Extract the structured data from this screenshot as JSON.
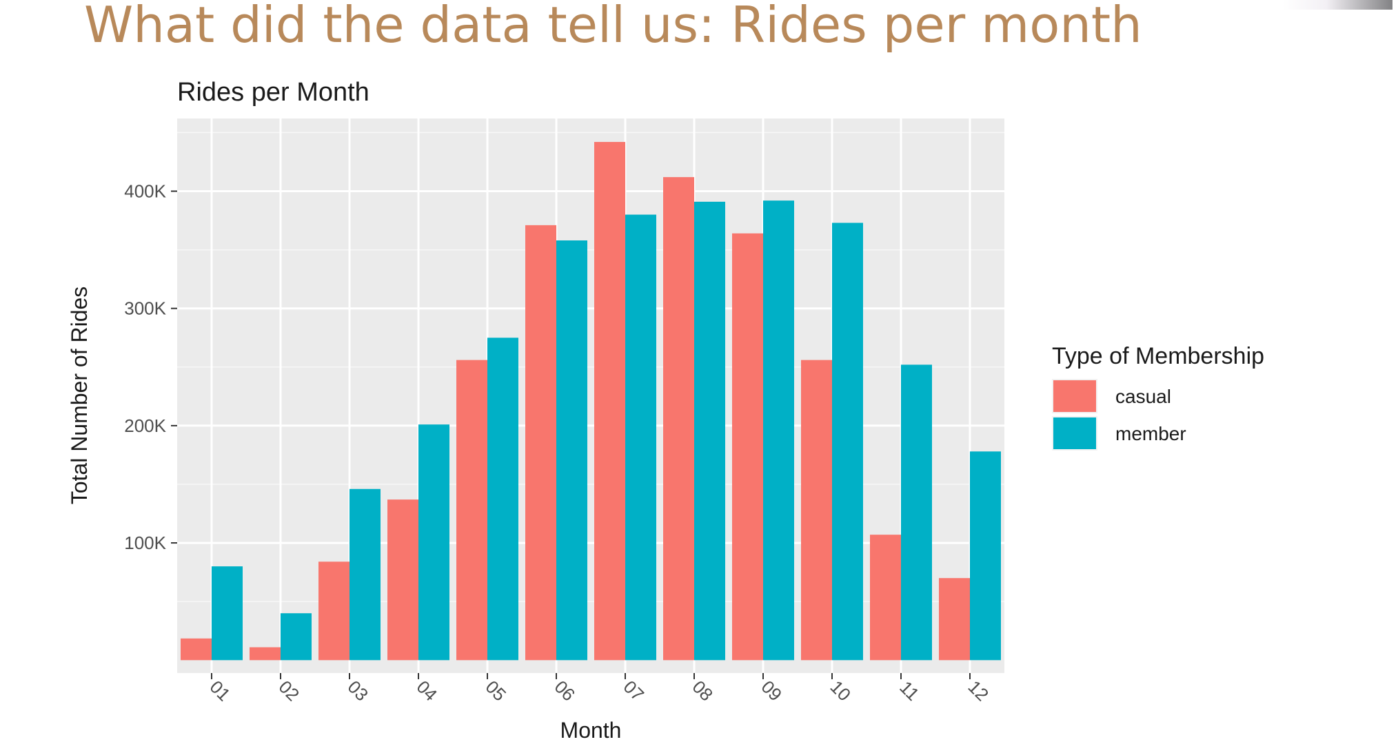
{
  "slide": {
    "title": "What did the data tell us: Rides per month"
  },
  "chart_data": {
    "type": "bar",
    "title": "Rides per Month",
    "xlabel": "Month",
    "ylabel": "Total Number of Rides",
    "categories": [
      "01",
      "02",
      "03",
      "04",
      "05",
      "06",
      "07",
      "08",
      "09",
      "10",
      "11",
      "12"
    ],
    "series": [
      {
        "name": "casual",
        "color": "#f8766d",
        "values": [
          18500,
          11000,
          84000,
          137000,
          256000,
          371000,
          442000,
          412000,
          364000,
          256000,
          107000,
          70000
        ]
      },
      {
        "name": "member",
        "color": "#00b0c6",
        "values": [
          80000,
          40000,
          146000,
          201000,
          275000,
          358000,
          380000,
          391000,
          392000,
          373000,
          252000,
          178000
        ]
      }
    ],
    "ylim": [
      -11000,
      462000
    ],
    "yticks": [
      100000,
      200000,
      300000,
      400000
    ],
    "ytick_labels": [
      "100K",
      "200K",
      "300K",
      "400K"
    ],
    "legend": {
      "title": "Type of Membership",
      "position": "right"
    },
    "grid": true,
    "panel_background": "#ebebeb"
  }
}
